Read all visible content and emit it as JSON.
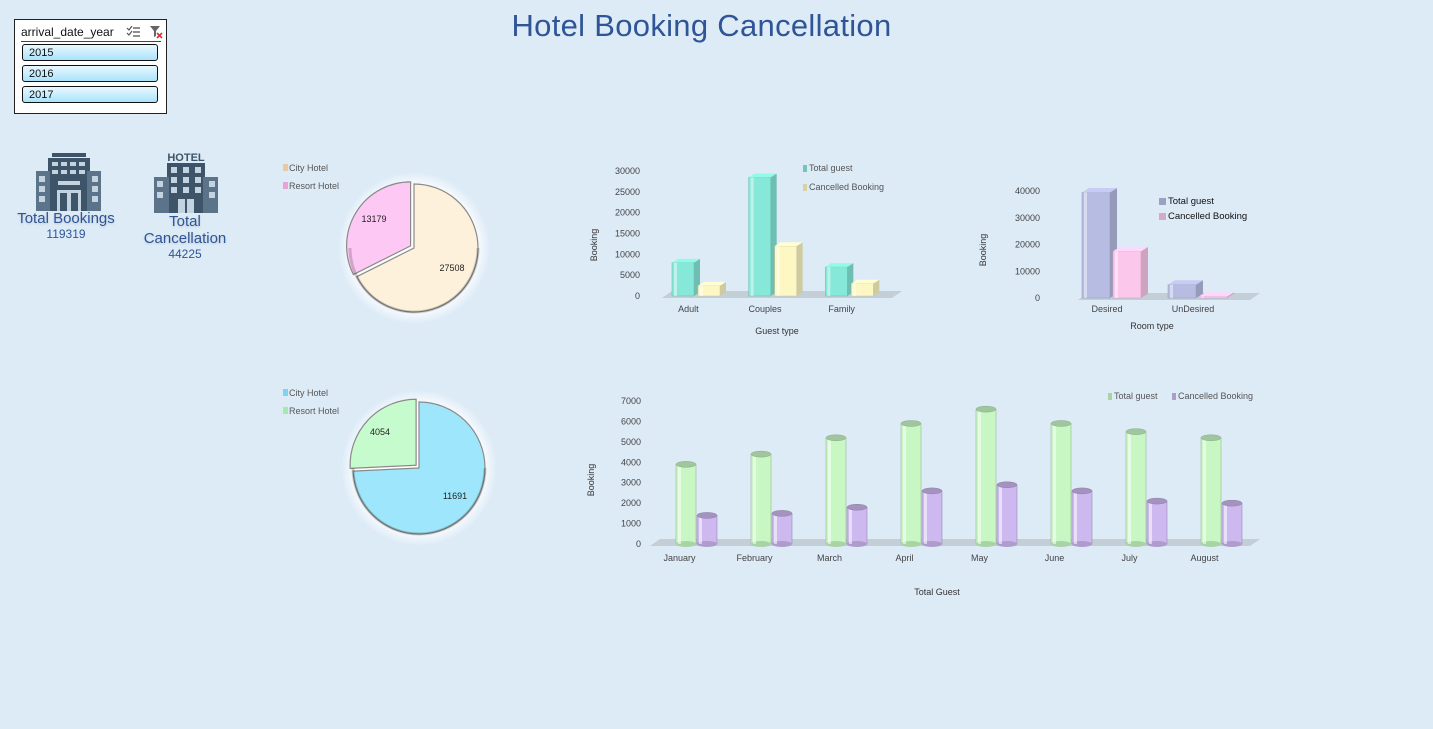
{
  "title": "Hotel Booking Cancellation",
  "slicer": {
    "title": "arrival_date_year",
    "items": [
      "2015",
      "2016",
      "2017"
    ]
  },
  "kpis": {
    "total_bookings_label": "Total Bookings",
    "total_bookings_value": "119319",
    "total_cancellation_label": "Total Cancellation",
    "total_cancellation_value": "44225",
    "hotel_sign_text": "HOTEL"
  },
  "chart_data": [
    {
      "type": "pie",
      "legend": [
        "City Hotel",
        "Resort Hotel"
      ],
      "labels": [
        "City Hotel",
        "Resort Hotel"
      ],
      "values": [
        27508,
        13179
      ],
      "colors": [
        "#fdf1dc",
        "#fdc9f4"
      ]
    },
    {
      "type": "bar",
      "categories": [
        "Adult",
        "Couples",
        "Family"
      ],
      "series": [
        {
          "name": "Total guest",
          "values": [
            8000,
            28500,
            7000
          ],
          "color": "#86e8d8"
        },
        {
          "name": "Cancelled Booking",
          "values": [
            2500,
            12000,
            3000
          ],
          "color": "#fdf7c3"
        }
      ],
      "xlabel": "Guest type",
      "ylabel": "Booking",
      "ylim": [
        0,
        30000
      ],
      "yticks": [
        "30000",
        "25000",
        "20000",
        "15000",
        "10000",
        "5000",
        "0"
      ]
    },
    {
      "type": "bar",
      "categories": [
        "Desired",
        "UnDesired"
      ],
      "series": [
        {
          "name": "Total guest",
          "values": [
            39500,
            5000
          ],
          "color": "#b7bde2"
        },
        {
          "name": "Cancelled Booking",
          "values": [
            17500,
            500
          ],
          "color": "#fbc7ea"
        }
      ],
      "xlabel": "Room type",
      "ylabel": "Booking",
      "ylim": [
        0,
        40000
      ],
      "yticks": [
        "40000",
        "30000",
        "20000",
        "10000",
        "0"
      ]
    },
    {
      "type": "pie",
      "legend": [
        "City Hotel",
        "Resort Hotel"
      ],
      "labels": [
        "City Hotel",
        "Resort Hotel"
      ],
      "values": [
        11691,
        4054
      ],
      "colors": [
        "#9ee6fb",
        "#c6fbcd"
      ]
    },
    {
      "type": "bar",
      "categories": [
        "January",
        "February",
        "March",
        "April",
        "May",
        "June",
        "July",
        "August"
      ],
      "series": [
        {
          "name": "Total guest",
          "values": [
            3900,
            4400,
            5200,
            5900,
            6600,
            5900,
            5500,
            5200
          ],
          "color": "#c8f7c4"
        },
        {
          "name": "Cancelled Booking",
          "values": [
            1400,
            1500,
            1800,
            2600,
            2900,
            2600,
            2100,
            2000
          ],
          "color": "#cdb8ef"
        }
      ],
      "xlabel": "Total Guest",
      "ylabel": "Booking",
      "ylim": [
        0,
        7000
      ],
      "yticks": [
        "7000",
        "6000",
        "5000",
        "4000",
        "3000",
        "2000",
        "1000",
        "0"
      ]
    }
  ]
}
